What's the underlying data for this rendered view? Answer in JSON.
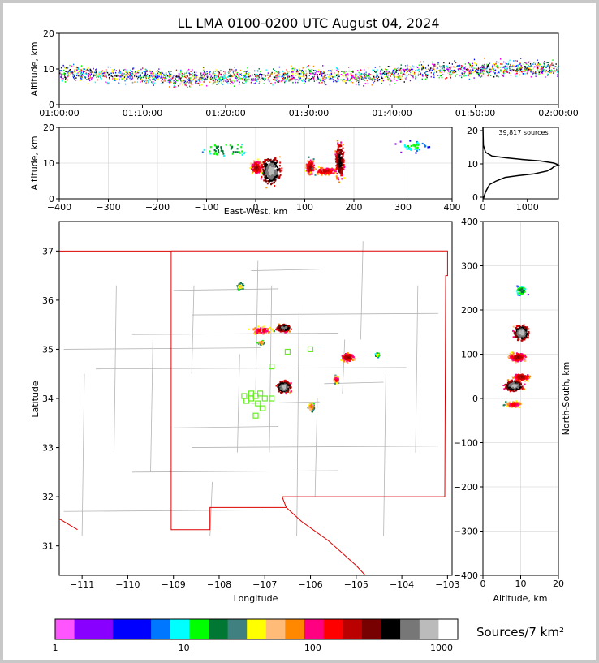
{
  "title": "LL LMA 0100-0200 UTC August 04, 2024",
  "panels": {
    "time_height": {
      "ylabel": "Altitude, km",
      "x_ticks": [
        "01:00:00",
        "01:10:00",
        "01:20:00",
        "01:30:00",
        "01:40:00",
        "01:50:00",
        "02:00:00"
      ],
      "y_ticks": [
        "0",
        "10",
        "20"
      ]
    },
    "ew_height": {
      "ylabel": "Altitude, km",
      "xlabel": "East-West, km",
      "x_ticks": [
        "−400",
        "−300",
        "−200",
        "−100",
        "0",
        "100",
        "200",
        "300",
        "400"
      ],
      "y_ticks": [
        "0",
        "10",
        "20"
      ]
    },
    "histogram": {
      "source_count": "39,817 sources",
      "x_ticks": [
        "0",
        "1000"
      ],
      "y_ticks": [
        "0",
        "10",
        "20"
      ]
    },
    "map": {
      "xlabel": "Longitude",
      "ylabel": "Latitude",
      "x_ticks": [
        "−111",
        "−110",
        "−109",
        "−108",
        "−107",
        "−106",
        "−105",
        "−104",
        "−103"
      ],
      "y_ticks": [
        "31",
        "32",
        "33",
        "34",
        "35",
        "36",
        "37"
      ]
    },
    "ns_height": {
      "xlabel": "Altitude, km",
      "ylabel": "North-South, km",
      "x_ticks": [
        "0",
        "10",
        "20"
      ],
      "y_ticks": [
        "−400",
        "−300",
        "−200",
        "−100",
        "0",
        "100",
        "200",
        "300",
        "400"
      ]
    }
  },
  "colorbar": {
    "label": "Sources/7 km²",
    "tick_labels": [
      "1",
      "10",
      "100",
      "1000"
    ],
    "colors": [
      "#ff55ff",
      "#8800ff",
      "#8800ff",
      "#0000ff",
      "#0000ff",
      "#0077ff",
      "#00ffff",
      "#00ff00",
      "#007733",
      "#408080",
      "#ffff00",
      "#ffbb77",
      "#ff8800",
      "#ff0080",
      "#ff0000",
      "#bb0000",
      "#770000",
      "#000000",
      "#777777",
      "#bbbbbb",
      "#ffffff"
    ]
  },
  "colors": {
    "state_border": "#dd0000",
    "county": "#b4b4b4",
    "grid": "#dcdcdc",
    "station": "#66ee22"
  },
  "chart_data": [
    {
      "type": "scatter",
      "name": "time-height",
      "x_range": [
        "01:00:00",
        "02:00:00"
      ],
      "ylim": [
        0,
        20
      ],
      "ylabel": "Altitude, km",
      "altitude_profile_km": [
        [
          0,
          9
        ],
        [
          5,
          8.5
        ],
        [
          10,
          8
        ],
        [
          15,
          7.5
        ],
        [
          20,
          8
        ],
        [
          25,
          8
        ],
        [
          30,
          8.5
        ],
        [
          35,
          8
        ],
        [
          40,
          8.5
        ],
        [
          45,
          10
        ],
        [
          50,
          10
        ],
        [
          55,
          10.5
        ],
        [
          60,
          10
        ]
      ]
    },
    {
      "type": "heatmap",
      "name": "east-west vs altitude",
      "xlim": [
        -400,
        400
      ],
      "ylim": [
        0,
        20
      ],
      "xlabel": "East-West, km",
      "ylabel": "Altitude, km",
      "clusters": [
        {
          "x": 0,
          "y": 9,
          "w": 15,
          "h": 5,
          "c": 5
        },
        {
          "x": 30,
          "y": 8,
          "w": 25,
          "h": 10,
          "c": 15
        },
        {
          "x": 110,
          "y": 9,
          "w": 12,
          "h": 6,
          "c": 5
        },
        {
          "x": 140,
          "y": 8,
          "w": 35,
          "h": 3,
          "c": 4
        },
        {
          "x": 170,
          "y": 11,
          "w": 12,
          "h": 14,
          "c": 8
        },
        {
          "x": -60,
          "y": 14,
          "w": 70,
          "h": 6,
          "c": 0.5
        },
        {
          "x": 320,
          "y": 15,
          "w": 40,
          "h": 5,
          "c": 0.3
        }
      ]
    },
    {
      "type": "line",
      "name": "altitude histogram",
      "source_count": 39817,
      "xlim": [
        0,
        1700
      ],
      "ylim": [
        0,
        20
      ],
      "points": [
        [
          10,
          0
        ],
        [
          60,
          2
        ],
        [
          150,
          4
        ],
        [
          300,
          5
        ],
        [
          500,
          6
        ],
        [
          800,
          6.5
        ],
        [
          1150,
          7
        ],
        [
          1450,
          7.8
        ],
        [
          1550,
          8.5
        ],
        [
          1600,
          9
        ],
        [
          1700,
          9.5
        ],
        [
          1600,
          10
        ],
        [
          1300,
          10.6
        ],
        [
          900,
          11
        ],
        [
          500,
          11.5
        ],
        [
          200,
          12
        ],
        [
          60,
          13
        ],
        [
          10,
          15
        ],
        [
          0,
          20
        ]
      ]
    },
    {
      "type": "heatmap",
      "name": "plan view",
      "xlim": [
        -111.5,
        -102.9
      ],
      "ylim": [
        30.4,
        37.6
      ],
      "xlabel": "Longitude",
      "ylabel": "Latitude",
      "clusters": [
        {
          "x": -106.6,
          "y": 34.25,
          "w": 0.2,
          "h": 0.15,
          "c": 15
        },
        {
          "x": -106.6,
          "y": 35.45,
          "w": 0.2,
          "h": 0.1,
          "c": 12
        },
        {
          "x": -107.1,
          "y": 35.4,
          "w": 0.35,
          "h": 0.1,
          "c": 3
        },
        {
          "x": -105.2,
          "y": 34.85,
          "w": 0.2,
          "h": 0.12,
          "c": 5
        },
        {
          "x": -105.45,
          "y": 34.4,
          "w": 0.08,
          "h": 0.1,
          "c": 3
        },
        {
          "x": -107.55,
          "y": 36.3,
          "w": 0.12,
          "h": 0.1,
          "c": 1
        },
        {
          "x": -106.0,
          "y": 33.85,
          "w": 0.08,
          "h": 0.12,
          "c": 2
        },
        {
          "x": -104.55,
          "y": 34.9,
          "w": 0.06,
          "h": 0.05,
          "c": 1
        },
        {
          "x": -107.1,
          "y": 35.15,
          "w": 0.08,
          "h": 0.05,
          "c": 2
        }
      ],
      "stations": [
        [
          -107.3,
          34.0
        ],
        [
          -107.1,
          34.1
        ],
        [
          -107.2,
          34.05
        ],
        [
          -107.0,
          34.0
        ],
        [
          -107.15,
          33.9
        ],
        [
          -107.05,
          33.8
        ],
        [
          -107.2,
          33.65
        ],
        [
          -107.3,
          34.1
        ],
        [
          -106.85,
          34.65
        ],
        [
          -106.5,
          34.95
        ],
        [
          -106.0,
          35.0
        ],
        [
          -106.85,
          34.0
        ],
        [
          -107.45,
          34.05
        ],
        [
          -107.4,
          33.95
        ]
      ]
    },
    {
      "type": "heatmap",
      "name": "altitude vs north-south",
      "xlim": [
        0,
        20
      ],
      "ylim": [
        -400,
        400
      ],
      "xlabel": "Altitude, km",
      "ylabel": "North-South, km",
      "clusters": [
        {
          "x": 10,
          "y": 150,
          "w": 2.5,
          "h": 22,
          "c": 15
        },
        {
          "x": 9,
          "y": 95,
          "w": 3,
          "h": 15,
          "c": 5
        },
        {
          "x": 10,
          "y": 50,
          "w": 3,
          "h": 12,
          "c": 5
        },
        {
          "x": 8,
          "y": 30,
          "w": 3,
          "h": 15,
          "c": 15
        },
        {
          "x": 8,
          "y": -12,
          "w": 3,
          "h": 10,
          "c": 3
        },
        {
          "x": 10,
          "y": 245,
          "w": 2,
          "h": 15,
          "c": 0.5
        }
      ]
    }
  ]
}
